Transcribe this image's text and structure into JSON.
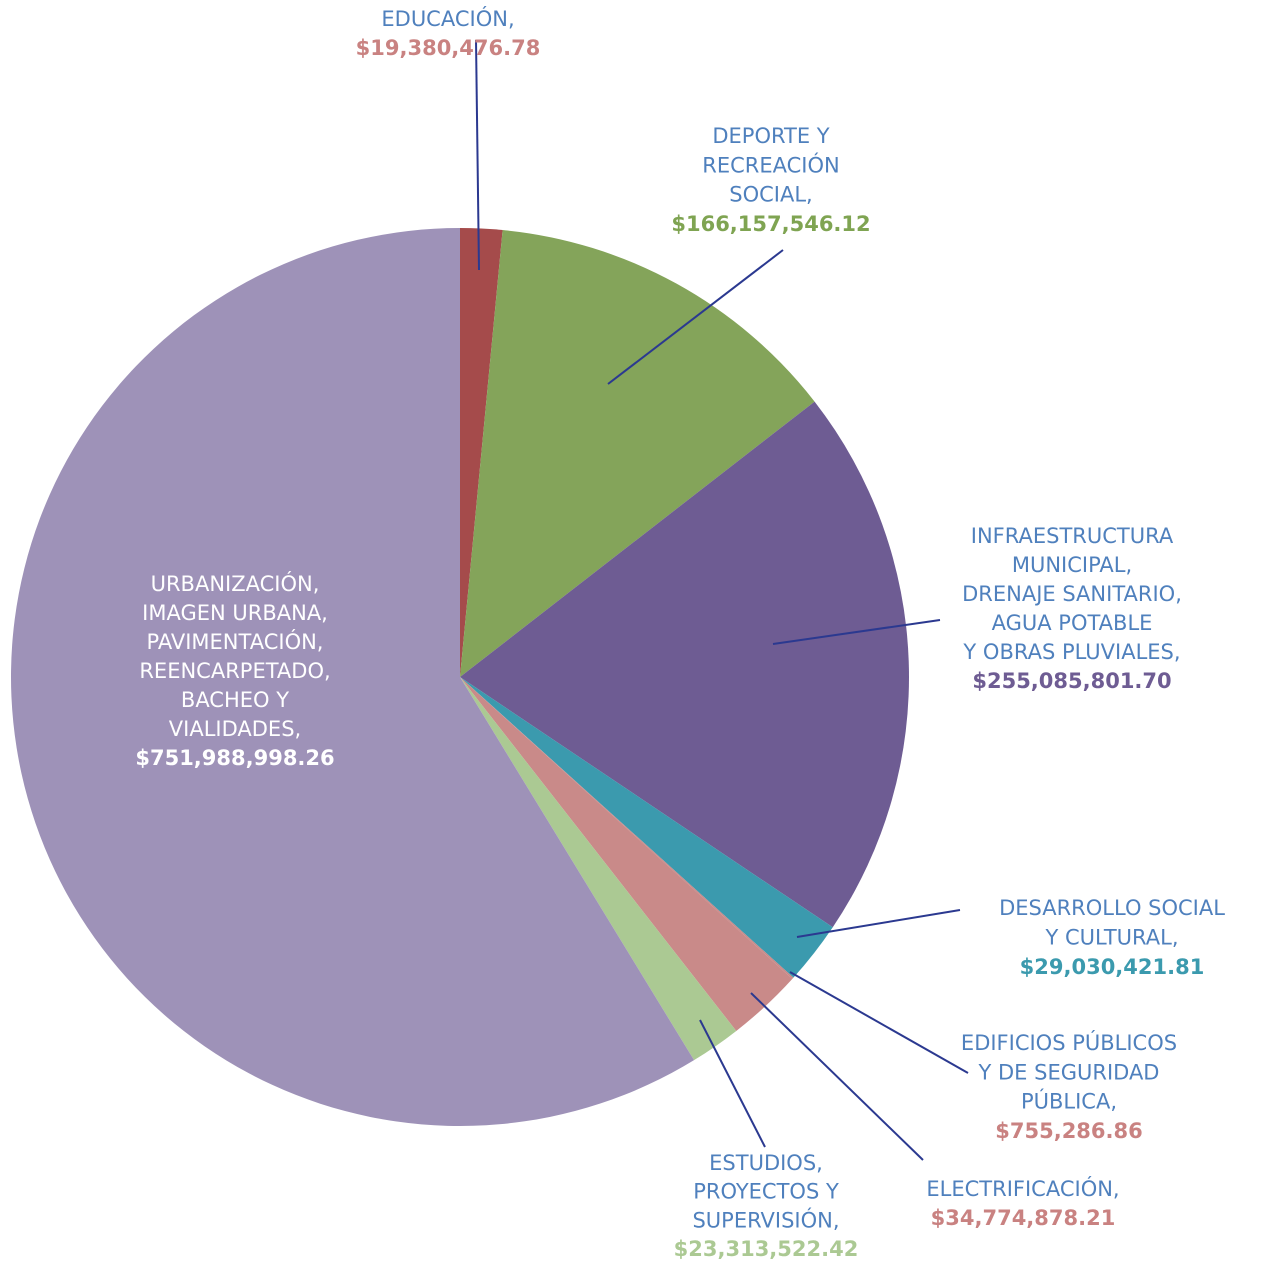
{
  "chart_data": {
    "type": "pie",
    "categories": [
      "EDUCACIÓN,",
      "DEPORTE Y\nRECREACIÓN\nSOCIAL,",
      "INFRAESTRUCTURA\nMUNICIPAL,\nDRENAJE SANITARIO,\nAGUA POTABLE\nY OBRAS PLUVIALES,",
      "DESARROLLO SOCIAL\nY CULTURAL,",
      "EDIFICIOS PÚBLICOS\nY DE SEGURIDAD\nPÚBLICA,",
      "ELECTRIFICACIÓN,",
      "ESTUDIOS,\nPROYECTOS Y\nSUPERVISIÓN,",
      "URBANIZACIÓN,\nIMAGEN URBANA,\nPAVIMENTACIÓN,\nREENCARPETADO,\nBACHEO Y\nVIALIDADES,"
    ],
    "values": [
      19380476.78,
      166157546.12,
      255085801.7,
      29030421.81,
      755286.86,
      34774878.21,
      23313522.42,
      751988998.26
    ],
    "value_labels": [
      "$19,380,476.78",
      "$166,157,546.12",
      "$255,085,801.70",
      "$29,030,421.81",
      "$755,286.86",
      "$34,774,878.21",
      "$23,313,522.42",
      "$751,988,998.26"
    ],
    "colors": [
      "#a54b4b",
      "#84a45a",
      "#6e5c93",
      "#3b9aae",
      "#c98a89",
      "#c98a89",
      "#abc993",
      "#9e92b8"
    ]
  }
}
